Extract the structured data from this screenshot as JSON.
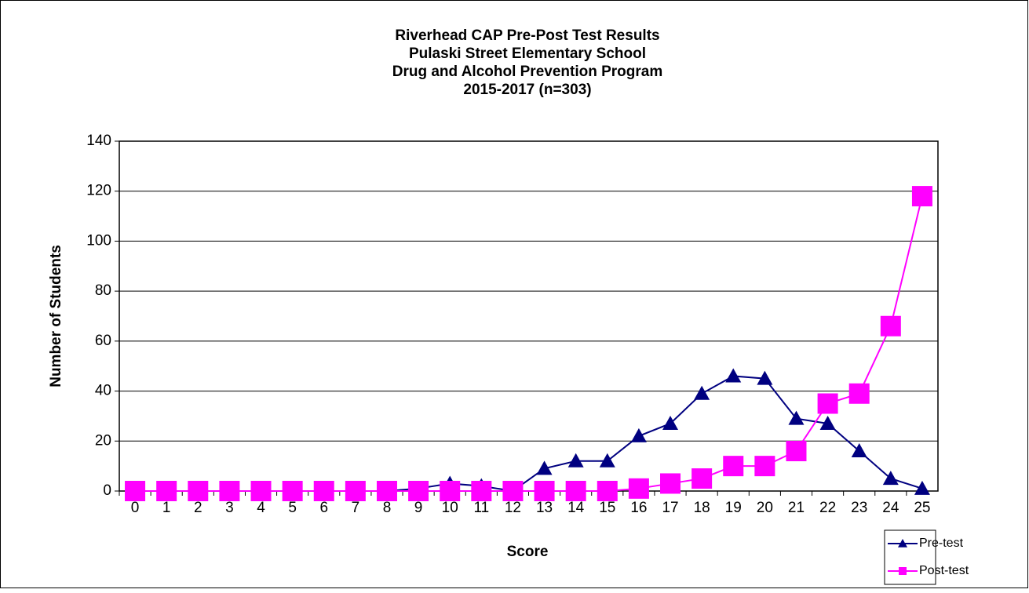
{
  "chart_data": {
    "type": "line",
    "title": [
      "Riverhead CAP Pre-Post Test Results",
      "Pulaski Street Elementary School",
      "Drug and Alcohol Prevention Program",
      "2015-2017 (n=303)"
    ],
    "x_label": "Score",
    "y_label": "Number of Students",
    "categories": [
      "0",
      "1",
      "2",
      "3",
      "4",
      "5",
      "6",
      "7",
      "8",
      "9",
      "10",
      "11",
      "12",
      "13",
      "14",
      "15",
      "16",
      "17",
      "18",
      "19",
      "20",
      "21",
      "22",
      "23",
      "24",
      "25"
    ],
    "series": [
      {
        "name": "Pre-test",
        "color": "#000080",
        "marker": "triangle",
        "values": [
          0,
          0,
          0,
          0,
          0,
          0,
          0,
          0,
          0,
          1,
          3,
          2,
          0,
          9,
          12,
          12,
          22,
          27,
          39,
          46,
          45,
          29,
          27,
          16,
          5,
          1
        ]
      },
      {
        "name": "Post-test",
        "color": "#FF00FF",
        "marker": "square",
        "values": [
          0,
          0,
          0,
          0,
          0,
          0,
          0,
          0,
          0,
          0,
          0,
          0,
          0,
          0,
          0,
          0,
          1,
          3,
          5,
          10,
          10,
          16,
          35,
          39,
          66,
          118
        ]
      }
    ],
    "ylim": [
      0,
      140
    ],
    "yticks": [
      0,
      20,
      40,
      60,
      80,
      100,
      120,
      140
    ],
    "grid": true,
    "legend": "bottom-right"
  }
}
